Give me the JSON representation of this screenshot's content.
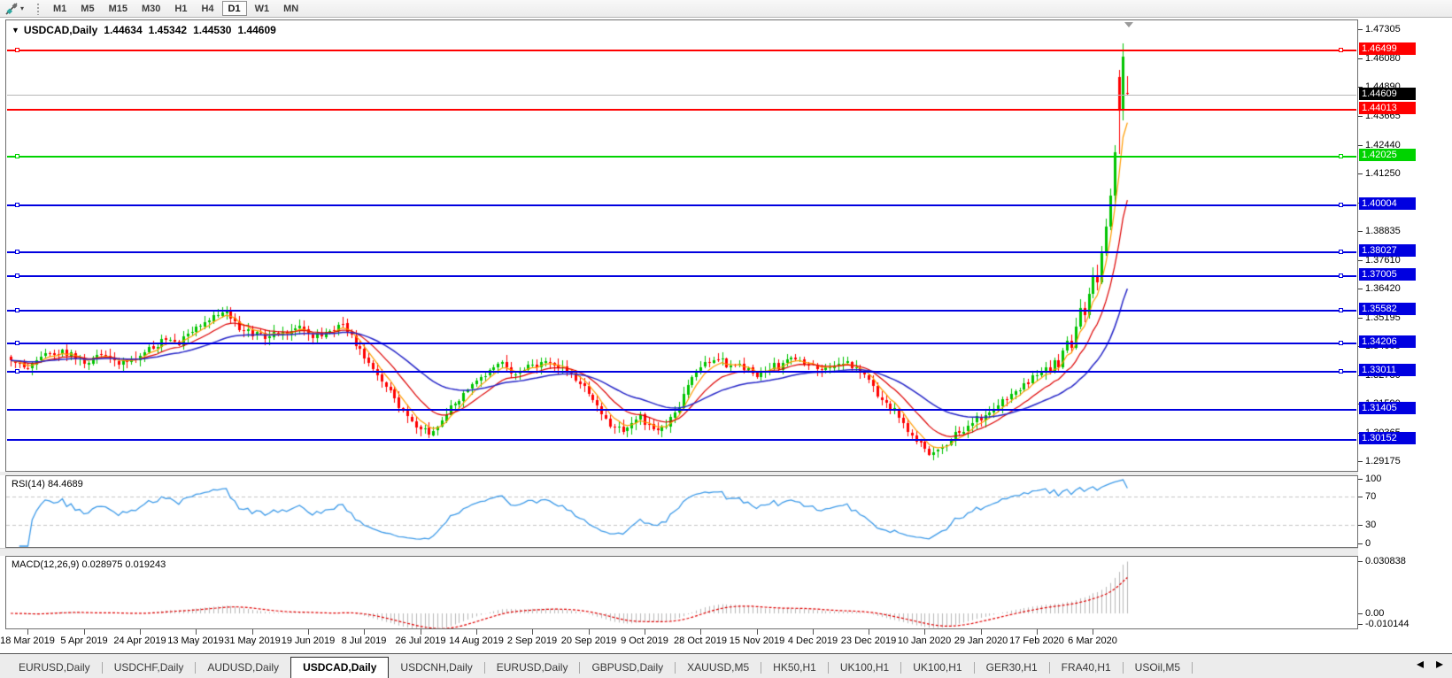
{
  "toolbar": {
    "timeframes": [
      {
        "label": "M1"
      },
      {
        "label": "M5"
      },
      {
        "label": "M15"
      },
      {
        "label": "M30"
      },
      {
        "label": "H1"
      },
      {
        "label": "H4"
      },
      {
        "label": "D1"
      },
      {
        "label": "W1"
      },
      {
        "label": "MN"
      }
    ],
    "active_timeframe": "D1",
    "dropdown_caret": "▾"
  },
  "chart_data": {
    "type": "candlestick",
    "symbol": "USDCAD",
    "period": "Daily",
    "title": {
      "collapse_icon": "▼",
      "symbol": "USDCAD,Daily",
      "open": "1.44634",
      "high": "1.45342",
      "low": "1.44530",
      "close": "1.44609"
    },
    "candle_count": 260,
    "price_anchors": [
      [
        0,
        1.334
      ],
      [
        3,
        1.331
      ],
      [
        6,
        1.334
      ],
      [
        9,
        1.337
      ],
      [
        12,
        1.3385
      ],
      [
        15,
        1.3345
      ],
      [
        18,
        1.333
      ],
      [
        21,
        1.3365
      ],
      [
        24,
        1.334
      ],
      [
        27,
        1.3335
      ],
      [
        30,
        1.336
      ],
      [
        33,
        1.339
      ],
      [
        36,
        1.3425
      ],
      [
        39,
        1.3405
      ],
      [
        42,
        1.346
      ],
      [
        45,
        1.35
      ],
      [
        48,
        1.353
      ],
      [
        50,
        1.3548
      ],
      [
        52,
        1.3505
      ],
      [
        54,
        1.3465
      ],
      [
        56,
        1.3442
      ],
      [
        58,
        1.3455
      ],
      [
        60,
        1.3442
      ],
      [
        63,
        1.346
      ],
      [
        66,
        1.3475
      ],
      [
        69,
        1.3452
      ],
      [
        72,
        1.3442
      ],
      [
        75,
        1.3465
      ],
      [
        77,
        1.3492
      ],
      [
        79,
        1.345
      ],
      [
        81,
        1.339
      ],
      [
        83,
        1.333
      ],
      [
        85,
        1.328
      ],
      [
        87,
        1.323
      ],
      [
        89,
        1.318
      ],
      [
        91,
        1.313
      ],
      [
        93,
        1.3085
      ],
      [
        95,
        1.305
      ],
      [
        97,
        1.303
      ],
      [
        99,
        1.3062
      ],
      [
        101,
        1.311
      ],
      [
        103,
        1.316
      ],
      [
        105,
        1.3205
      ],
      [
        107,
        1.3242
      ],
      [
        109,
        1.3272
      ],
      [
        111,
        1.33
      ],
      [
        113,
        1.3328
      ],
      [
        115,
        1.331
      ],
      [
        117,
        1.3282
      ],
      [
        119,
        1.3302
      ],
      [
        121,
        1.3322
      ],
      [
        124,
        1.3338
      ],
      [
        126,
        1.332
      ],
      [
        129,
        1.3292
      ],
      [
        132,
        1.3242
      ],
      [
        134,
        1.32
      ],
      [
        136,
        1.3152
      ],
      [
        138,
        1.3096
      ],
      [
        140,
        1.306
      ],
      [
        142,
        1.3042
      ],
      [
        144,
        1.3076
      ],
      [
        146,
        1.311
      ],
      [
        148,
        1.307
      ],
      [
        150,
        1.3046
      ],
      [
        152,
        1.3062
      ],
      [
        154,
        1.3122
      ],
      [
        156,
        1.32
      ],
      [
        158,
        1.327
      ],
      [
        160,
        1.3312
      ],
      [
        162,
        1.333
      ],
      [
        164,
        1.3342
      ],
      [
        167,
        1.332
      ],
      [
        170,
        1.33
      ],
      [
        173,
        1.3272
      ],
      [
        176,
        1.3302
      ],
      [
        179,
        1.333
      ],
      [
        182,
        1.3346
      ],
      [
        185,
        1.3322
      ],
      [
        188,
        1.33
      ],
      [
        191,
        1.332
      ],
      [
        194,
        1.3336
      ],
      [
        197,
        1.329
      ],
      [
        200,
        1.3232
      ],
      [
        203,
        1.3162
      ],
      [
        206,
        1.31
      ],
      [
        208,
        1.3042
      ],
      [
        210,
        1.3
      ],
      [
        212,
        1.2968
      ],
      [
        214,
        1.2956
      ],
      [
        216,
        1.2978
      ],
      [
        218,
        1.3006
      ],
      [
        220,
        1.3036
      ],
      [
        223,
        1.3076
      ],
      [
        226,
        1.311
      ],
      [
        229,
        1.315
      ],
      [
        232,
        1.32
      ],
      [
        235,
        1.3245
      ],
      [
        238,
        1.328
      ],
      [
        240,
        1.331
      ]
    ],
    "final_candles": [
      [
        241,
        1.331,
        1.3342,
        1.3282,
        1.3292
      ],
      [
        242,
        1.3292,
        1.3352,
        1.3286,
        1.334
      ],
      [
        243,
        1.334,
        1.3366,
        1.3296,
        1.3312
      ],
      [
        244,
        1.3312,
        1.3395,
        1.3306,
        1.3382
      ],
      [
        245,
        1.3382,
        1.344,
        1.337,
        1.3422
      ],
      [
        246,
        1.3422,
        1.3448,
        1.3372,
        1.3392
      ],
      [
        247,
        1.3392,
        1.352,
        1.3386,
        1.3482
      ],
      [
        248,
        1.3482,
        1.3596,
        1.347,
        1.356
      ],
      [
        249,
        1.356,
        1.3588,
        1.3502,
        1.353
      ],
      [
        250,
        1.353,
        1.3646,
        1.3516,
        1.3622
      ],
      [
        251,
        1.3622,
        1.373,
        1.36,
        1.37
      ],
      [
        252,
        1.37,
        1.3742,
        1.3636,
        1.3668
      ],
      [
        253,
        1.3668,
        1.382,
        1.366,
        1.3792
      ],
      [
        254,
        1.3792,
        1.3936,
        1.378,
        1.3902
      ],
      [
        255,
        1.3902,
        1.4062,
        1.3886,
        1.4032
      ],
      [
        256,
        1.4032,
        1.4246,
        1.3986,
        1.4216
      ],
      [
        257,
        1.453,
        1.456,
        1.4208,
        1.439
      ],
      [
        258,
        1.439,
        1.4674,
        1.435,
        1.4618
      ],
      [
        259,
        1.44634,
        1.45342,
        1.4453,
        1.44609
      ]
    ],
    "wick_spikes": [
      [
        49,
        1.3565
      ],
      [
        77,
        1.3522
      ]
    ],
    "moving_averages": [
      {
        "name": "fast-ma",
        "period": 5,
        "color": "#FF9C00"
      },
      {
        "name": "mid-ma",
        "period": 13,
        "color": "#DE0000"
      },
      {
        "name": "slow-ma",
        "period": 34,
        "color": "#2626C8"
      }
    ],
    "h_lines": [
      {
        "price": 1.46499,
        "tag": "1.46499",
        "color": "#FF0000",
        "handles": true
      },
      {
        "price": 1.44013,
        "tag": "1.44013",
        "color": "#FF0000",
        "handles": false
      },
      {
        "price": 1.42025,
        "tag": "1.42025",
        "color": "#00D300",
        "handles": true
      },
      {
        "price": 1.40004,
        "tag": "1.40004",
        "color": "#0000E0",
        "handles": true
      },
      {
        "price": 1.38027,
        "tag": "1.38027",
        "color": "#0000E0",
        "handles": true
      },
      {
        "price": 1.37005,
        "tag": "1.37005",
        "color": "#0000E0",
        "handles": true
      },
      {
        "price": 1.35582,
        "tag": "1.35582",
        "color": "#0000E0",
        "handles": true
      },
      {
        "price": 1.34206,
        "tag": "1.34206",
        "color": "#0000E0",
        "handles": true
      },
      {
        "price": 1.33011,
        "tag": "1.33011",
        "color": "#0000E0",
        "handles": true
      },
      {
        "price": 1.31405,
        "tag": "1.31405",
        "color": "#0000E0",
        "handles": false
      },
      {
        "price": 1.30152,
        "tag": "1.30152",
        "color": "#0000E0",
        "handles": false
      }
    ],
    "current_price": {
      "value": 1.44609,
      "tag": "1.44609",
      "tag_color": "#000000",
      "line_color": "#b6b6b6"
    },
    "y_axis_ticks": [
      "1.47305",
      "1.46080",
      "1.44890",
      "1.43665",
      "1.42440",
      "1.41250",
      "1.40025",
      "1.38835",
      "1.37610",
      "1.36420",
      "1.35195",
      "1.34005",
      "1.32780",
      "1.31590",
      "1.30365",
      "1.29175"
    ],
    "x_labels": [
      "18 Mar 2019",
      "5 Apr 2019",
      "24 Apr 2019",
      "13 May 2019",
      "31 May 2019",
      "19 Jun 2019",
      "8 Jul 2019",
      "26 Jul 2019",
      "14 Aug 2019",
      "2 Sep 2019",
      "20 Sep 2019",
      "9 Oct 2019",
      "28 Oct 2019",
      "15 Nov 2019",
      "4 Dec 2019",
      "23 Dec 2019",
      "10 Jan 2020",
      "29 Jan 2020",
      "17 Feb 2020",
      "6 Mar 2020"
    ],
    "x_label_first_index": 4,
    "x_label_step": 13,
    "colors": {
      "bull": "#00C400",
      "bear": "#FF0000"
    },
    "indicators": {
      "rsi": {
        "label": "RSI(14) 84.4689",
        "period": 14,
        "value": "84.4689",
        "levels": [
          70,
          30
        ],
        "axis_labels": [
          "100",
          "70",
          "30",
          "0"
        ],
        "range": [
          0,
          100
        ],
        "line_color": "#3E9BE9",
        "level_color": "#c6c6c6"
      },
      "macd": {
        "label": "MACD(12,26,9) 0.028975 0.019243",
        "fast": 12,
        "slow": 26,
        "signal": 9,
        "main_value": "0.028975",
        "signal_value": "0.019243",
        "axis_labels": [
          "0.030838",
          "0.00",
          "-0.010144"
        ],
        "histogram_color": "#b8b8b8",
        "signal_color": "#E00000"
      }
    }
  },
  "tabs": {
    "items": [
      {
        "label": "EURUSD,Daily"
      },
      {
        "label": "USDCHF,Daily"
      },
      {
        "label": "AUDUSD,Daily"
      },
      {
        "label": "USDCAD,Daily"
      },
      {
        "label": "USDCNH,Daily"
      },
      {
        "label": "EURUSD,Daily"
      },
      {
        "label": "GBPUSD,Daily"
      },
      {
        "label": "XAUUSD,M5"
      },
      {
        "label": "HK50,H1"
      },
      {
        "label": "UK100,H1"
      },
      {
        "label": "UK100,H1"
      },
      {
        "label": "GER30,H1"
      },
      {
        "label": "FRA40,H1"
      },
      {
        "label": "USOil,M5"
      }
    ],
    "active_index": 3,
    "scroll_left_icon": "◂",
    "scroll_right_icon": "▸"
  }
}
